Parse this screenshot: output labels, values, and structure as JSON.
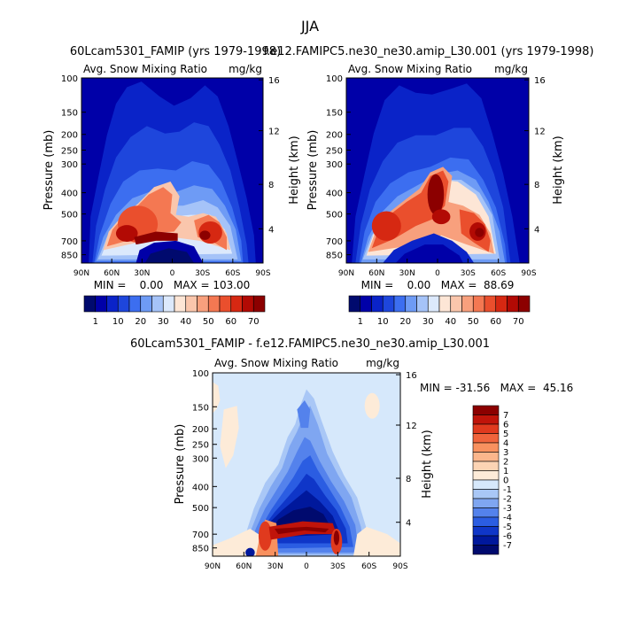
{
  "figure": {
    "season": "JJA"
  },
  "chart_data": [
    {
      "type": "heatmap",
      "title": "60Lcam5301_FAMIP (yrs 1979-1998)",
      "subtitle_left": "Avg. Snow Mixing Ratio",
      "subtitle_right": "mg/kg",
      "ylabel": "Pressure (mb)",
      "y2label": "Height (km)",
      "xticks": [
        "90N",
        "60N",
        "30N",
        "0",
        "30S",
        "60S",
        "90S"
      ],
      "yticks": [
        "100",
        "150",
        "200",
        "250",
        "300",
        "400",
        "500",
        "700",
        "850"
      ],
      "y2ticks": [
        "16",
        "12",
        "8",
        "4"
      ],
      "stats": "MIN =    0.00   MAX = 103.00",
      "min": 0.0,
      "max": 103.0,
      "colorbar_labels": [
        "1",
        "10",
        "20",
        "30",
        "40",
        "50",
        "60",
        "70"
      ],
      "field": "model1"
    },
    {
      "type": "heatmap",
      "title": "f.e12.FAMIPC5.ne30_ne30.amip_L30.001 (yrs 1979-1998)",
      "subtitle_left": "Avg. Snow Mixing Ratio",
      "subtitle_right": "mg/kg",
      "ylabel": "Pressure (mb)",
      "y2label": "Height (km)",
      "xticks": [
        "90N",
        "60N",
        "30N",
        "0",
        "30S",
        "60S",
        "90S"
      ],
      "yticks": [
        "100",
        "150",
        "200",
        "250",
        "300",
        "400",
        "500",
        "700",
        "850"
      ],
      "y2ticks": [
        "16",
        "12",
        "8",
        "4"
      ],
      "stats": "MIN =    0.00   MAX =  88.69",
      "min": 0.0,
      "max": 88.69,
      "colorbar_labels": [
        "1",
        "10",
        "20",
        "30",
        "40",
        "50",
        "60",
        "70"
      ],
      "field": "model2"
    },
    {
      "type": "heatmap",
      "title": "60Lcam5301_FAMIP - f.e12.FAMIPC5.ne30_ne30.amip_L30.001",
      "subtitle_left": "Avg. Snow Mixing Ratio",
      "subtitle_right": "mg/kg",
      "ylabel": "Pressure (mb)",
      "y2label": "Height (km)",
      "xticks": [
        "90N",
        "60N",
        "30N",
        "0",
        "30S",
        "60S",
        "90S"
      ],
      "yticks": [
        "100",
        "150",
        "200",
        "250",
        "300",
        "400",
        "500",
        "700",
        "850"
      ],
      "y2ticks": [
        "16",
        "12",
        "8",
        "4"
      ],
      "stats": "MIN = -31.56   MAX =  45.16",
      "min": -31.56,
      "max": 45.16,
      "colorbar_labels": [
        "7",
        "6",
        "5",
        "4",
        "3",
        "2",
        "1",
        "0",
        "-1",
        "-2",
        "-3",
        "-4",
        "-5",
        "-6",
        "-7"
      ],
      "field": "difference"
    }
  ],
  "colors": {
    "sequential": [
      "#000a6e",
      "#0000a8",
      "#0a23c8",
      "#1e46dc",
      "#3c6ef0",
      "#6e9bf5",
      "#a5c3f8",
      "#dce9fc",
      "#fde6d6",
      "#fac6ac",
      "#f8a07d",
      "#f47852",
      "#ea4f2d",
      "#d62812",
      "#b20a04",
      "#8c0000"
    ],
    "diverging_top_to_bottom": [
      "#8c0000",
      "#c0140a",
      "#e03a1e",
      "#f0643c",
      "#f8915f",
      "#fbb68c",
      "#fcd4b4",
      "#fdebd8",
      "#d6e8fb",
      "#a9c7f6",
      "#7fa6f1",
      "#5482ec",
      "#2b5de2",
      "#0f36c8",
      "#00189c",
      "#000a6e"
    ]
  }
}
